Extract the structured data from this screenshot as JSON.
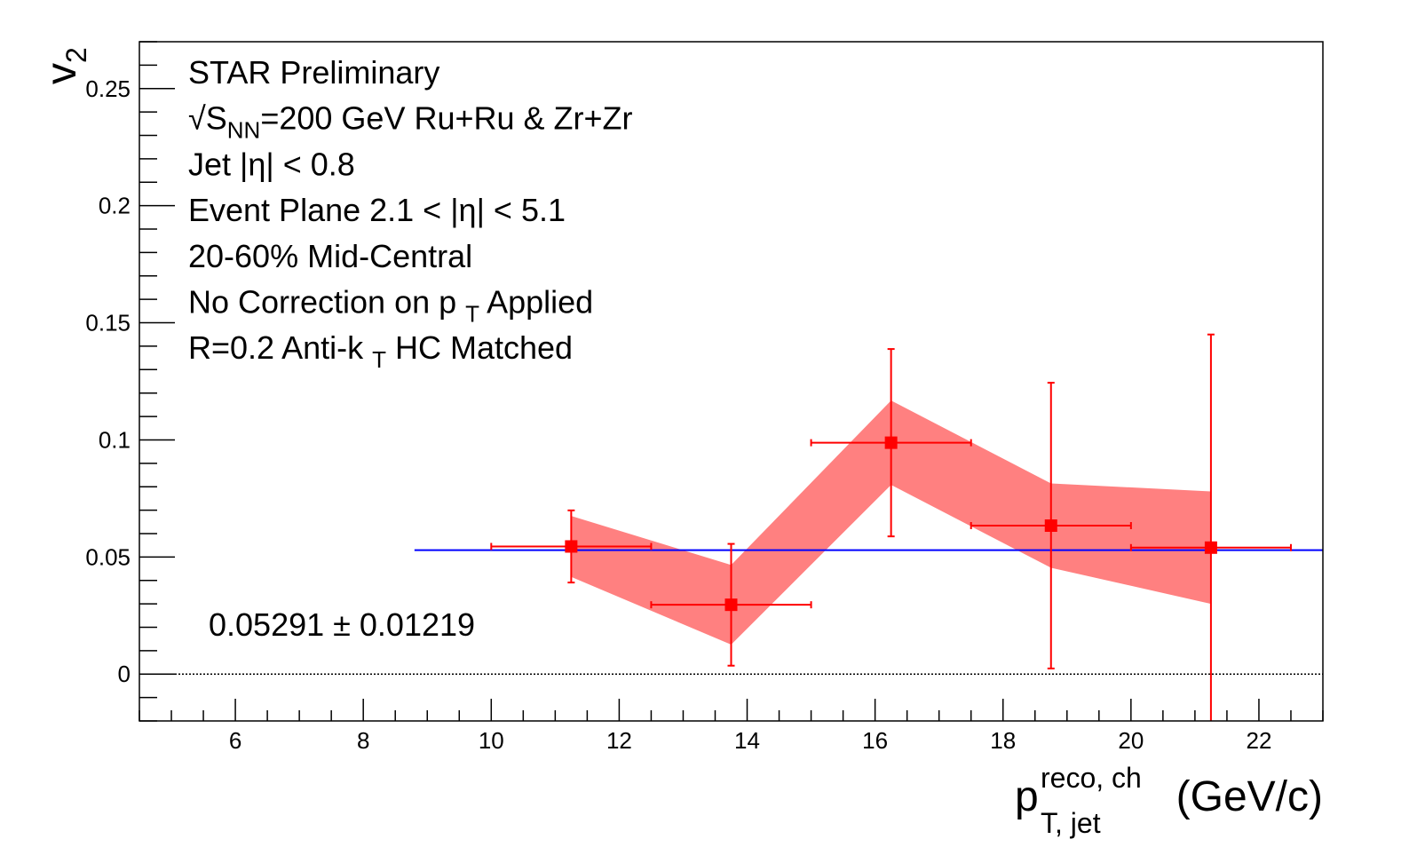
{
  "chart_data": {
    "type": "errorbar",
    "annotations": [
      [
        "STAR Preliminary"
      ],
      [
        "√S",
        {
          "sub": "NN"
        },
        "=200 GeV Ru+Ru & Zr+Zr"
      ],
      [
        "Jet |η| < 0.8"
      ],
      [
        "Event Plane 2.1 < |η| < 5.1"
      ],
      [
        "20-60% Mid-Central"
      ],
      [
        "No Correction on p ",
        {
          "sub": "T"
        },
        " Applied"
      ],
      [
        "R=0.2 Anti-k ",
        {
          "sub": "T"
        },
        " HC Matched"
      ]
    ],
    "y_label": {
      "base": "v",
      "sub": "2"
    },
    "x_label": {
      "base": "p",
      "sup": "reco, ch",
      "sub": "T, jet",
      "rest": "(GeV/c)"
    },
    "x": [
      11.25,
      13.75,
      16.25,
      18.75,
      21.25
    ],
    "xerr": [
      1.25,
      1.25,
      1.25,
      1.25,
      1.25
    ],
    "values": [
      0.0545,
      0.0296,
      0.0988,
      0.0634,
      0.054
    ],
    "errors": [
      0.0154,
      0.026,
      0.04,
      0.061,
      0.091
    ],
    "sys_errors": [
      0.013,
      0.017,
      0.018,
      0.018,
      0.024
    ],
    "color": "#ff0000",
    "sys_color": "#ff8080",
    "fit": {
      "value": 0.05291,
      "x": [
        8.8,
        23
      ],
      "label": "0.05291 ± 0.01219",
      "color": "#0000ff"
    },
    "zero_line": true,
    "xlim": [
      4.5,
      23
    ],
    "ylim": [
      -0.02,
      0.27
    ],
    "xticks": [
      6,
      8,
      10,
      12,
      14,
      16,
      18,
      20,
      22
    ],
    "yticks": [
      0,
      0.05,
      0.1,
      0.15,
      0.2,
      0.25
    ],
    "xminor": 4,
    "yminor": 5
  }
}
